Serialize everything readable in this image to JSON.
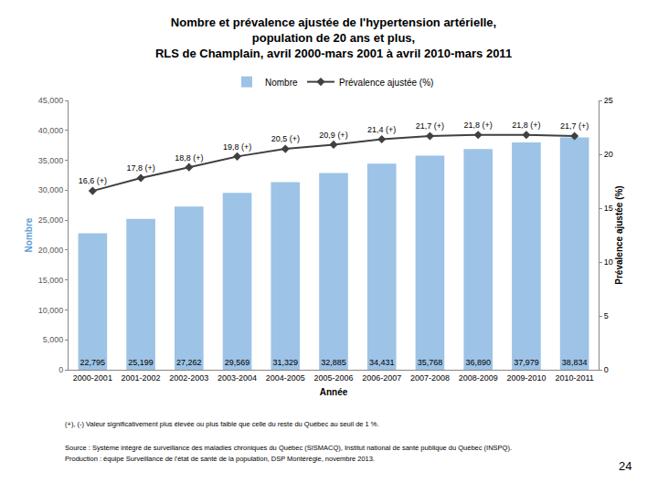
{
  "chart_data": {
    "type": "bar",
    "title": "Nombre et prévalence ajustée de l'hypertension artérielle,\npopulation de 20 ans et plus,\nRLS de Champlain, avril 2000-mars 2001 à avril 2010-mars 2011",
    "categories": [
      "2000-2001",
      "2001-2002",
      "2002-2003",
      "2003-2004",
      "2004-2005",
      "2005-2006",
      "2006-2007",
      "2007-2008",
      "2008-2009",
      "2009-2010",
      "2010-2011"
    ],
    "series": [
      {
        "name": "Nombre",
        "type": "bar",
        "color": "#9dc3e6",
        "values": [
          22795,
          25199,
          27262,
          29569,
          31329,
          32885,
          34431,
          35768,
          36890,
          37979,
          38834
        ],
        "value_labels": [
          "22,795",
          "25,199",
          "27,262",
          "29,569",
          "31,329",
          "32,885",
          "34,431",
          "35,768",
          "36,890",
          "37,979",
          "38,834"
        ]
      },
      {
        "name": "Prévalence ajustée (%)",
        "type": "line",
        "axis": "y2",
        "color": "#404040",
        "marker": "diamond",
        "values": [
          16.6,
          17.8,
          18.8,
          19.8,
          20.5,
          20.9,
          21.4,
          21.7,
          21.8,
          21.8,
          21.7
        ],
        "value_labels": [
          "16,6 (+)",
          "17,8 (+)",
          "18,8 (+)",
          "19,8 (+)",
          "20,5 (+)",
          "20,9 (+)",
          "21,4 (+)",
          "21,7 (+)",
          "21,8 (+)",
          "21,8 (+)",
          "21,7 (+)"
        ]
      }
    ],
    "x_label": "Année",
    "y_label": "Nombre",
    "y2_label": "Prévalence ajustée (%)",
    "ylim": [
      0,
      45000
    ],
    "yticks": [
      0,
      {
        "value": 5000,
        "label": "5,000"
      },
      {
        "value": 10000,
        "label": "10,000"
      },
      {
        "value": 15000,
        "label": "15,000"
      },
      {
        "value": 20000,
        "label": "20,000"
      },
      {
        "value": 25000,
        "label": "25,000"
      },
      {
        "value": 30000,
        "label": "30,000"
      },
      {
        "value": 35000,
        "label": "35,000"
      },
      {
        "value": 40000,
        "label": "40,000"
      },
      {
        "value": 45000,
        "label": "45,000"
      }
    ],
    "y2lim": [
      0,
      25
    ],
    "y2ticks": [
      0,
      5,
      10,
      15,
      20,
      25
    ],
    "grid": false,
    "legend": "top",
    "data_labels": true,
    "footnotes": [
      "(+), (-) Valeur significativement plus élevée ou plus faible que celle du reste du Québec au seuil de 1 %.",
      "Source : Système intégré de surveillance des maladies chroniques du Québec (SISMACQ), Institut national de santé publique du Québec (INSPQ).",
      "Production : équipe Surveillance de l'état de santé de la population, DSP Montérégie, novembre 2013."
    ],
    "page_number": "24"
  }
}
